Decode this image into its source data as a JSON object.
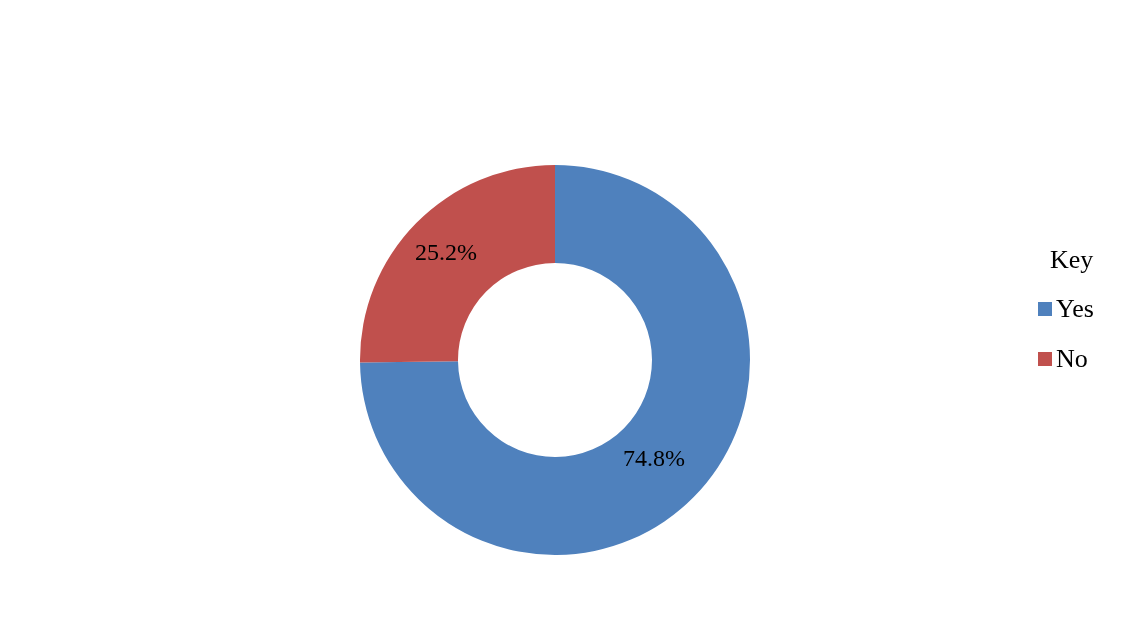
{
  "chart_data": {
    "type": "donut",
    "categories": [
      "Yes",
      "No"
    ],
    "values": [
      74.8,
      25.2
    ],
    "colors": [
      "#4f81bd",
      "#c0504d"
    ],
    "value_labels": [
      "74.8%",
      "25.2%"
    ],
    "legend_title": "Key",
    "legend": "right"
  }
}
